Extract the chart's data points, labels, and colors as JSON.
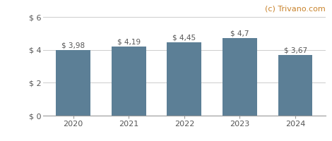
{
  "categories": [
    2020,
    2021,
    2022,
    2023,
    2024
  ],
  "values": [
    3.98,
    4.19,
    4.45,
    4.7,
    3.67
  ],
  "labels": [
    "$ 3,98",
    "$ 4,19",
    "$ 4,45",
    "$ 4,7",
    "$ 3,67"
  ],
  "bar_color": "#5c7f96",
  "background_color": "#ffffff",
  "ylim": [
    0,
    6
  ],
  "yticks": [
    0,
    2,
    4,
    6
  ],
  "ytick_labels": [
    "$ 0",
    "$ 2",
    "$ 4",
    "$ 6"
  ],
  "watermark": "(c) Trivano.com",
  "watermark_color": "#c8822a",
  "grid_color": "#cccccc",
  "label_color": "#555555",
  "bar_width": 0.62,
  "label_fontsize": 7.5,
  "tick_fontsize": 8,
  "watermark_fontsize": 8
}
